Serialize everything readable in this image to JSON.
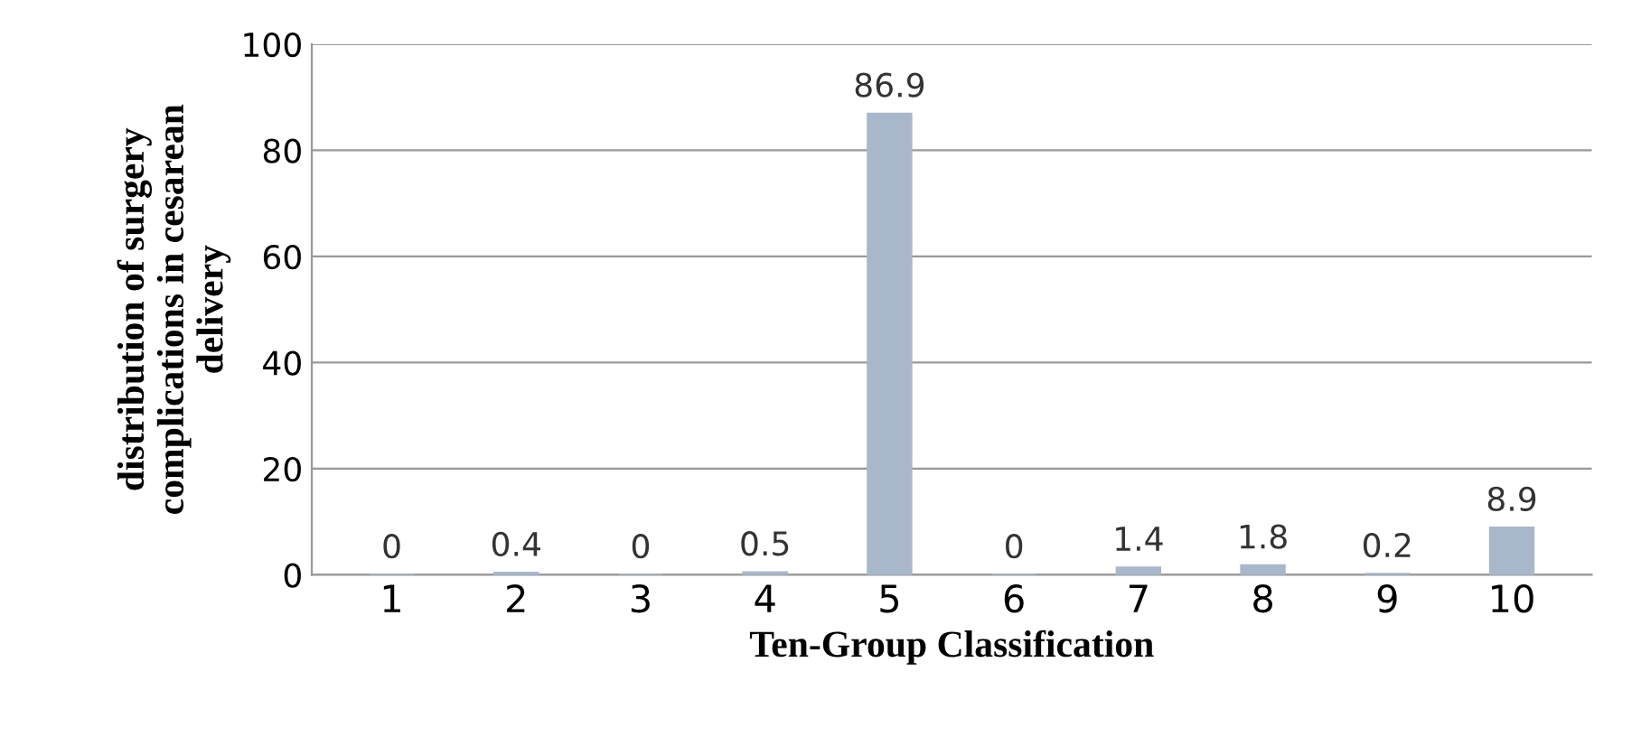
{
  "chart_data": {
    "type": "bar",
    "xlabel": "Ten-Group Classification",
    "ylabel": "distribution of surgery\ncomplications in cesarean\ndelivery",
    "categories": [
      "1",
      "2",
      "3",
      "4",
      "5",
      "6",
      "7",
      "8",
      "9",
      "10"
    ],
    "values": [
      0,
      0.4,
      0,
      0.5,
      86.9,
      0,
      1.4,
      1.8,
      0.2,
      8.9
    ],
    "color": "#a9b7ca",
    "ylim": [
      0,
      100
    ],
    "yticks": [
      0,
      20,
      40,
      60,
      80,
      100
    ],
    "grid": "y",
    "data_labels": true,
    "legend": false
  }
}
